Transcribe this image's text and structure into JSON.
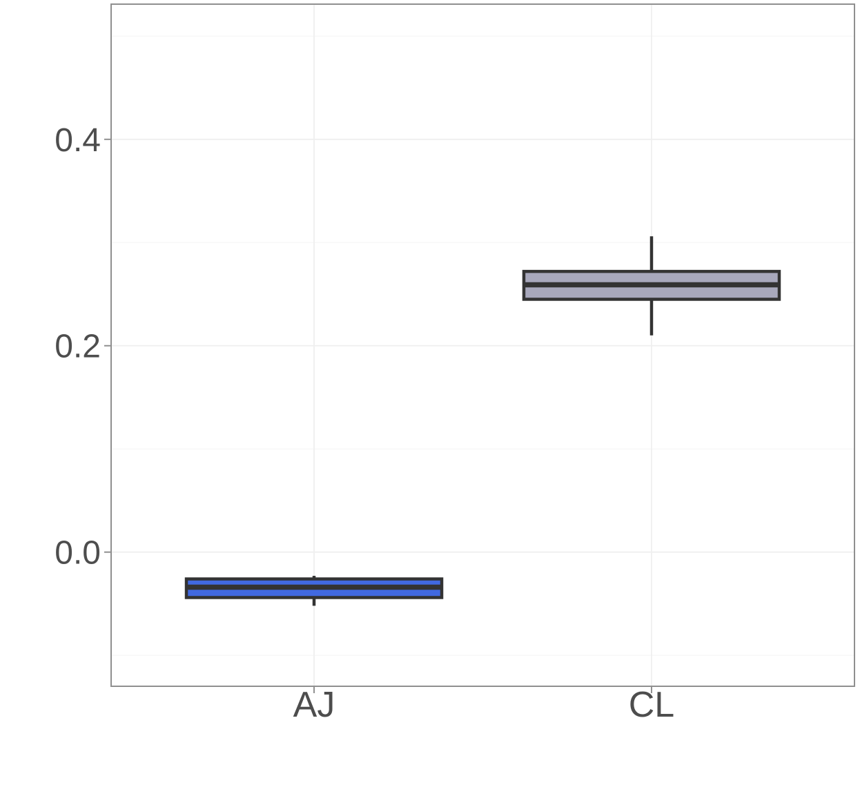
{
  "chart_data": {
    "type": "boxplot",
    "title": "",
    "xlabel": "",
    "ylabel": "",
    "categories": [
      "AJ",
      "CL"
    ],
    "series": [
      {
        "name": "AJ",
        "whisker_low": -0.052,
        "q1": -0.044,
        "median": -0.034,
        "q3": -0.026,
        "whisker_high": -0.023,
        "fill": "#4169E1"
      },
      {
        "name": "CL",
        "whisker_low": 0.21,
        "q1": 0.245,
        "median": 0.259,
        "q3": 0.272,
        "whisker_high": 0.306,
        "fill": "#A8A8BC"
      }
    ],
    "y_ticks": [
      0.0,
      0.2,
      0.4
    ],
    "y_tick_labels": [
      "0.0",
      "0.2",
      "0.4"
    ],
    "y_minor_ticks": [
      -0.1,
      0.1,
      0.3,
      0.5
    ],
    "ylim": [
      -0.13,
      0.531
    ],
    "grid": "major+minor, very faint",
    "legend": false
  },
  "colors": {
    "background": "#FFFFFF",
    "panel_background": "#FFFFFF",
    "panel_border": "#8F8F8F",
    "grid_major": "#EFEFEF",
    "grid_minor": "#F6F6F6",
    "tick_mark": "#8F8F8F",
    "axis_text": "#4D4D4D",
    "box_border": "#333333"
  }
}
